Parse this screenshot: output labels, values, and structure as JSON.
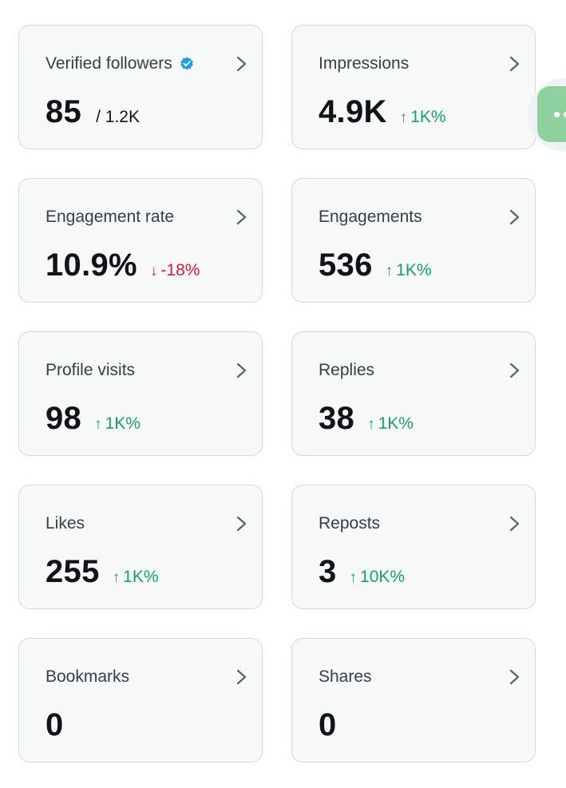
{
  "cards": [
    {
      "title": "Verified followers",
      "value": "85",
      "sub": "/ 1.2K",
      "change": "",
      "arrow": "",
      "direction": ""
    },
    {
      "title": "Impressions",
      "value": "4.9K",
      "sub": "",
      "change": "1K%",
      "arrow": "↑",
      "direction": "up"
    },
    {
      "title": "Engagement rate",
      "value": "10.9%",
      "sub": "",
      "change": "-18%",
      "arrow": "↓",
      "direction": "down"
    },
    {
      "title": "Engagements",
      "value": "536",
      "sub": "",
      "change": "1K%",
      "arrow": "↑",
      "direction": "up"
    },
    {
      "title": "Profile visits",
      "value": "98",
      "sub": "",
      "change": "1K%",
      "arrow": "↑",
      "direction": "up"
    },
    {
      "title": "Replies",
      "value": "38",
      "sub": "",
      "change": "1K%",
      "arrow": "↑",
      "direction": "up"
    },
    {
      "title": "Likes",
      "value": "255",
      "sub": "",
      "change": "1K%",
      "arrow": "↑",
      "direction": "up"
    },
    {
      "title": "Reposts",
      "value": "3",
      "sub": "",
      "change": "10K%",
      "arrow": "↑",
      "direction": "up"
    },
    {
      "title": "Bookmarks",
      "value": "0",
      "sub": "",
      "change": "",
      "arrow": "",
      "direction": ""
    },
    {
      "title": "Shares",
      "value": "0",
      "sub": "",
      "change": "",
      "arrow": "",
      "direction": ""
    }
  ],
  "icons": {
    "verified": "verified-badge-icon",
    "chevron": "chevron-right-icon"
  },
  "colors": {
    "up": "#1a9e67",
    "down": "#d11f36",
    "verified": "#1d9bf0",
    "card_bg": "#f7f9f9",
    "card_border": "#cfd9de"
  }
}
